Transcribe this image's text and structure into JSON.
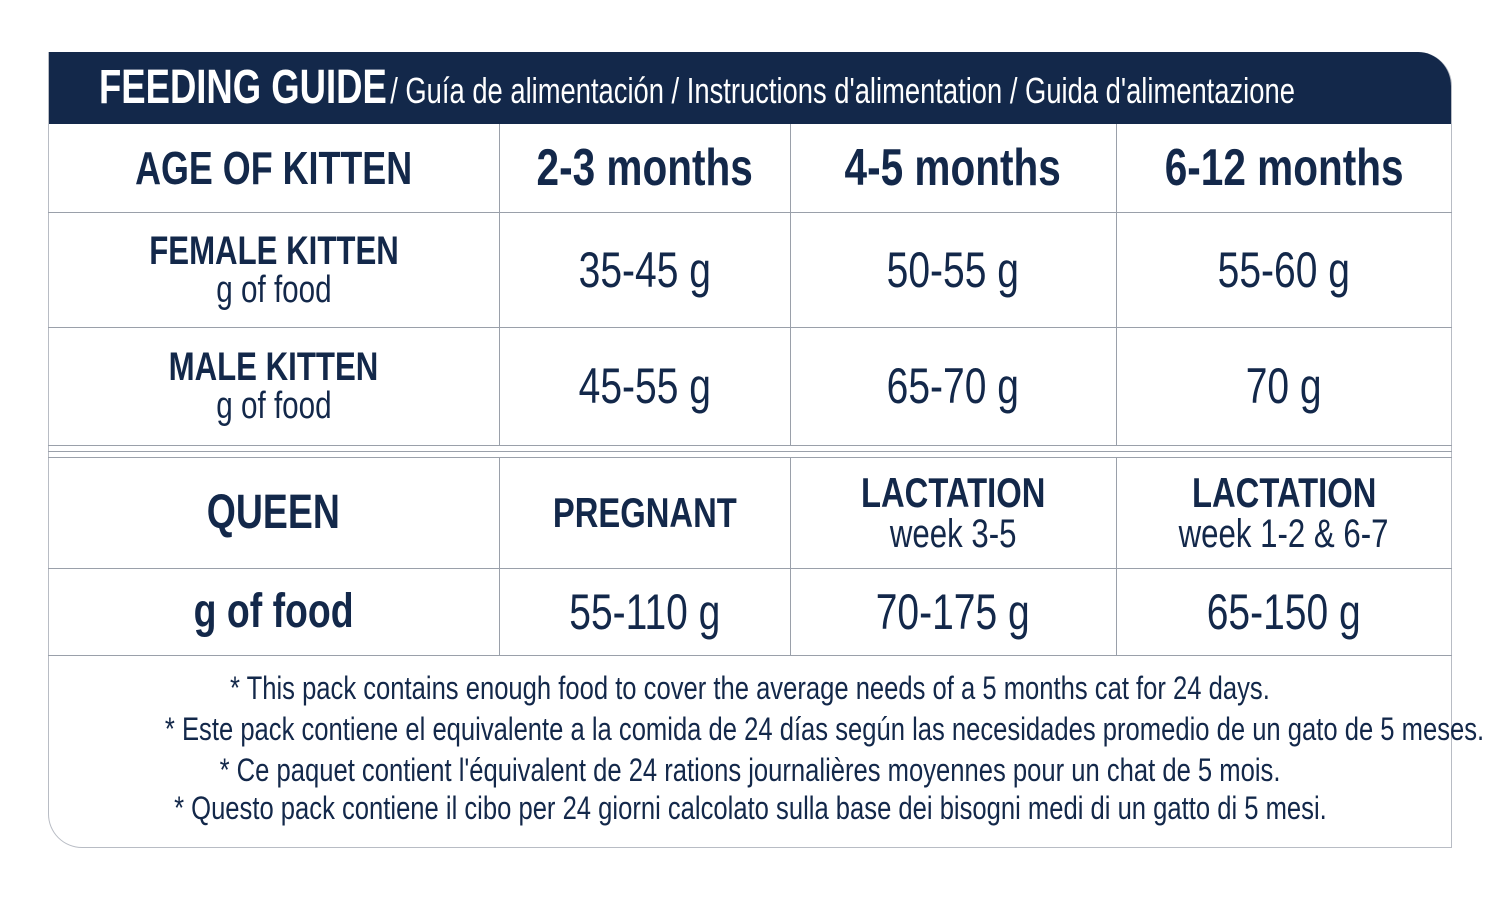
{
  "header": {
    "title": "FEEDING GUIDE",
    "subtitle": "/ Guía de alimentación / Instructions d'alimentation / Guida d'alimentazione"
  },
  "kitten_table": {
    "header": [
      "AGE OF KITTEN",
      "2-3 months",
      "4-5 months",
      "6-12 months"
    ],
    "rows": [
      {
        "label": "FEMALE KITTEN",
        "sublabel": "g of food",
        "cells": [
          "35-45 g",
          "50-55 g",
          "55-60 g"
        ]
      },
      {
        "label": "MALE KITTEN",
        "sublabel": "g of food",
        "cells": [
          "45-55 g",
          "65-70 g",
          "70 g"
        ]
      }
    ]
  },
  "queen_table": {
    "header": [
      {
        "label": "QUEEN"
      },
      {
        "label": "PREGNANT"
      },
      {
        "label": "LACTATION",
        "sublabel": "week 3-5"
      },
      {
        "label": "LACTATION",
        "sublabel": "week 1-2 & 6-7"
      }
    ],
    "rows": [
      {
        "label": "g of food",
        "cells": [
          "55-110 g",
          "70-175 g",
          "65-150 g"
        ]
      }
    ]
  },
  "notes": [
    "* This pack contains enough food to cover the average needs of a 5 months cat for 24 days.",
    "* Este pack contiene el equivalente a la comida de 24 días según las necesidades promedio de un gato de 5 meses.",
    "* Ce paquet contient l'équivalent de 24 rations journalières moyennes pour un chat de 5 mois.",
    "* Questo pack contiene il cibo per 24 giorni calcolato sulla base dei bisogni medi di un gatto di 5 mesi."
  ]
}
